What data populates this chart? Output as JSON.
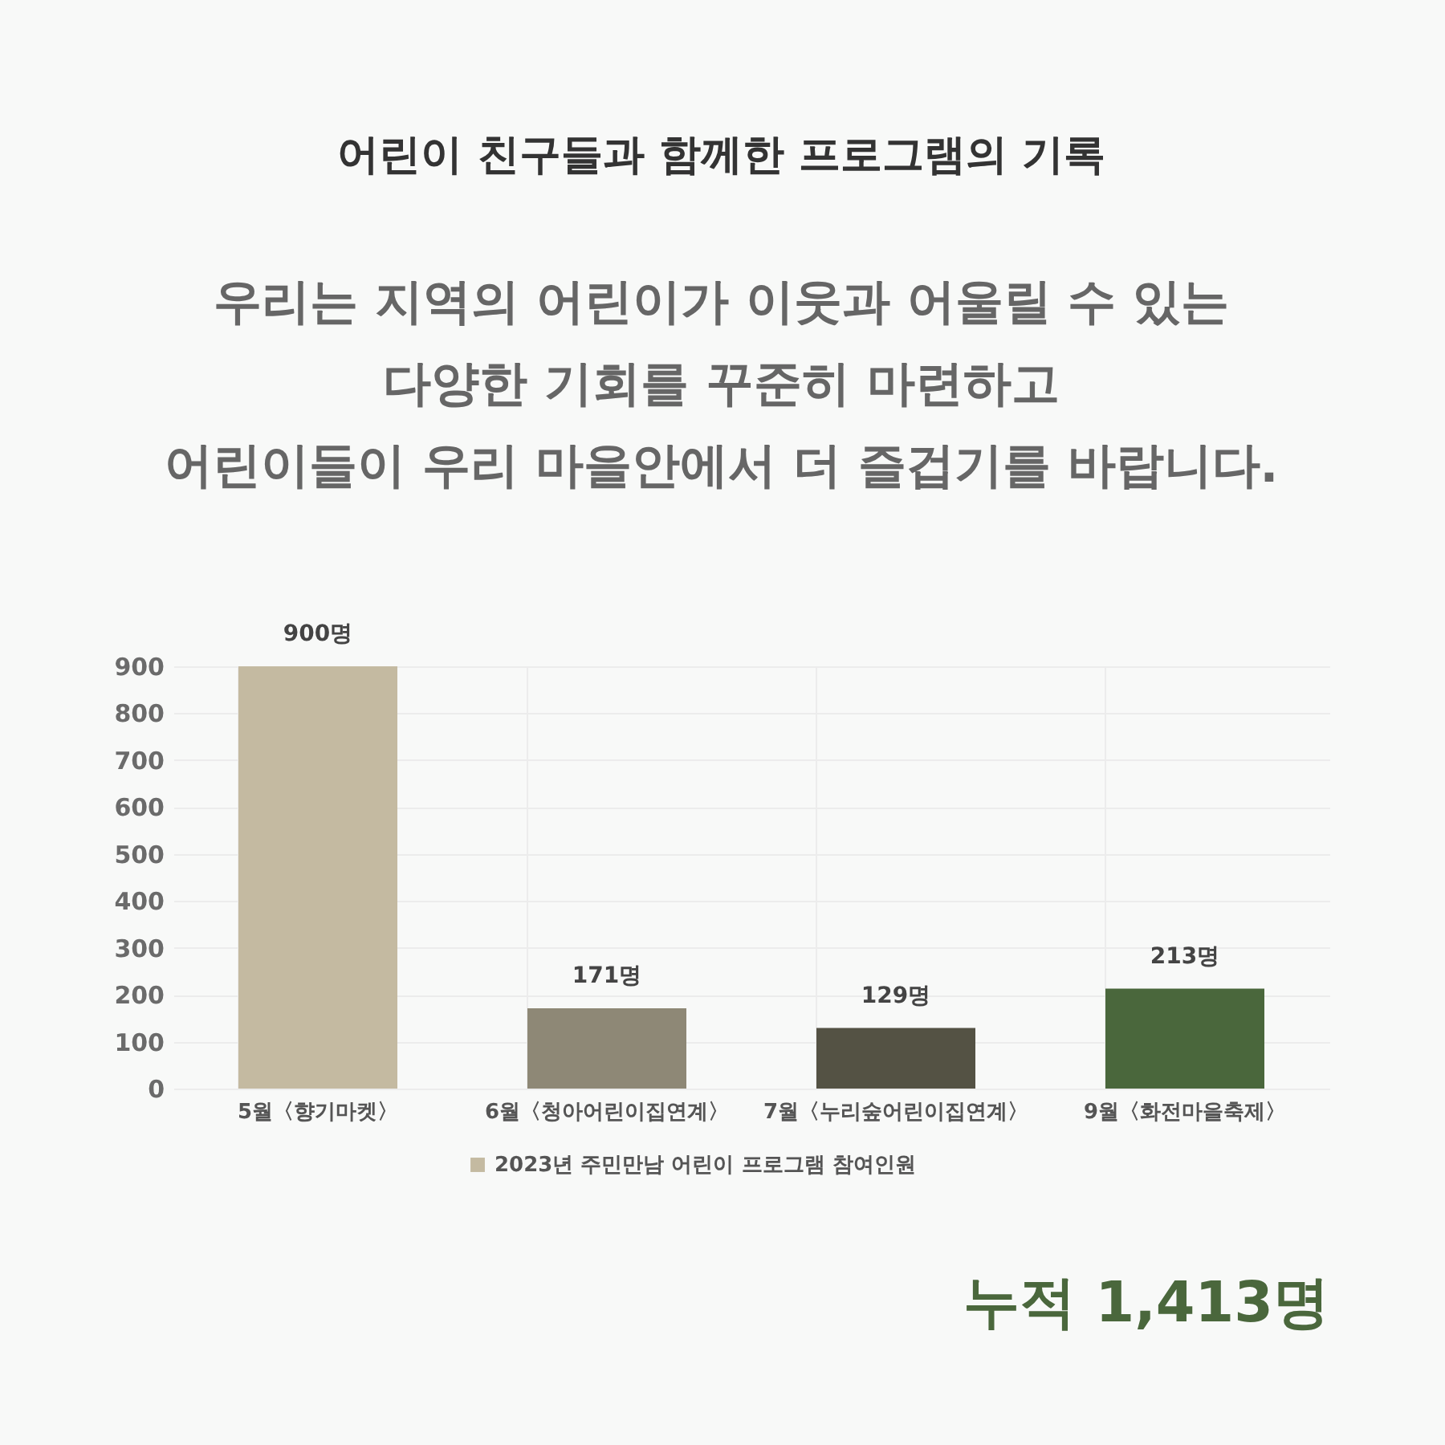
{
  "chart_data": {
    "type": "bar",
    "title": "어린이 친구들과 함께한 프로그램의 기록",
    "subtitle": "우리는 지역의 어린이가 이웃과 어울릴 수 있는\n다양한 기회를 꾸준히 마련하고\n어린이들이 우리 마을안에서 더 즐겁기를 바랍니다.",
    "categories": [
      "5월〈향기마켓〉",
      "6월〈청아어린이집연계〉",
      "7월〈누리숲어린이집연계〉",
      "9월〈화전마을축제〉"
    ],
    "series": [
      {
        "name": "2023년 주민만남 어린이 프로그램 참여인원",
        "values": [
          900,
          171,
          129,
          213
        ]
      }
    ],
    "colors": [
      "#c4baa1",
      "#8e8876",
      "#545244",
      "#4a673c"
    ],
    "value_labels": [
      "900명",
      "171명",
      "129명",
      "213명"
    ],
    "ylim": [
      0,
      900
    ],
    "yticks": [
      0,
      100,
      200,
      300,
      400,
      500,
      600,
      700,
      800,
      900
    ],
    "grid": true,
    "legend": "bottom",
    "annotations": [
      "누적 1,413명"
    ]
  }
}
